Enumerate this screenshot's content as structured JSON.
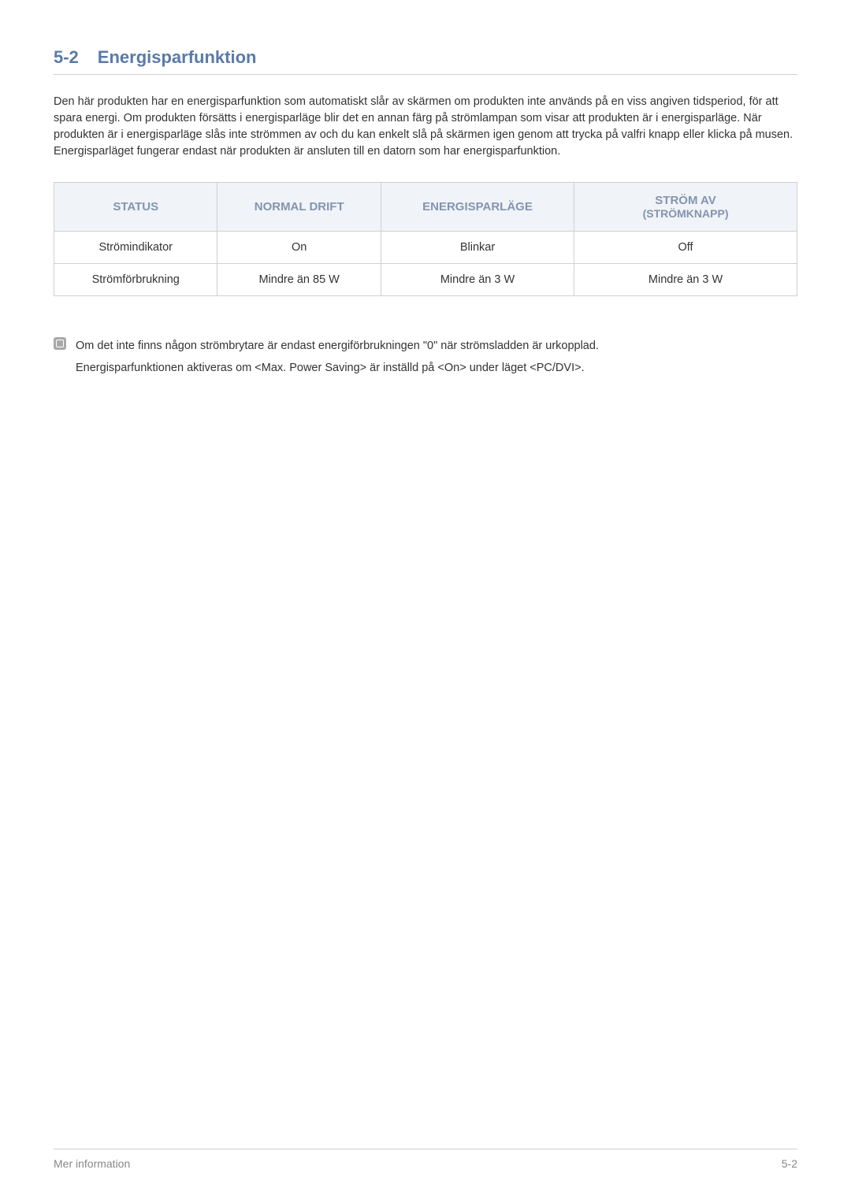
{
  "heading": {
    "number": "5-2",
    "title": "Energisparfunktion"
  },
  "intro": "Den här produkten har en energisparfunktion som automatiskt slår av skärmen om produkten inte används på en viss angiven tidsperiod, för att spara energi. Om produkten försätts i energisparläge blir det en annan färg på strömlampan som visar att produkten är i energisparläge. När produkten är i energisparläge slås inte strömmen av och du kan enkelt slå på skärmen igen genom att trycka på valfri knapp eller klicka på musen. Energisparläget fungerar endast när produkten är ansluten till en datorn som har energisparfunktion.",
  "table": {
    "headers": {
      "status": "STATUS",
      "normal": "NORMAL DRIFT",
      "energy": "ENERGISPARLÄGE",
      "power_line1": "STRÖM AV",
      "power_line2": "(STRÖMKNAPP)"
    },
    "rows": [
      {
        "status": "Strömindikator",
        "normal": "On",
        "energy": "Blinkar",
        "power": "Off"
      },
      {
        "status": "Strömförbrukning",
        "normal": "Mindre än 85 W",
        "energy": "Mindre än 3 W",
        "power": "Mindre än 3 W"
      }
    ]
  },
  "notes": {
    "line1": "Om det inte finns någon strömbrytare är endast energiförbrukningen \"0\" när strömsladden är urkopplad.",
    "line2": "Energisparfunktionen aktiveras om <Max. Power Saving> är inställd på <On> under läget <PC/DVI>."
  },
  "footer": {
    "left": "Mer information",
    "right": "5-2"
  }
}
